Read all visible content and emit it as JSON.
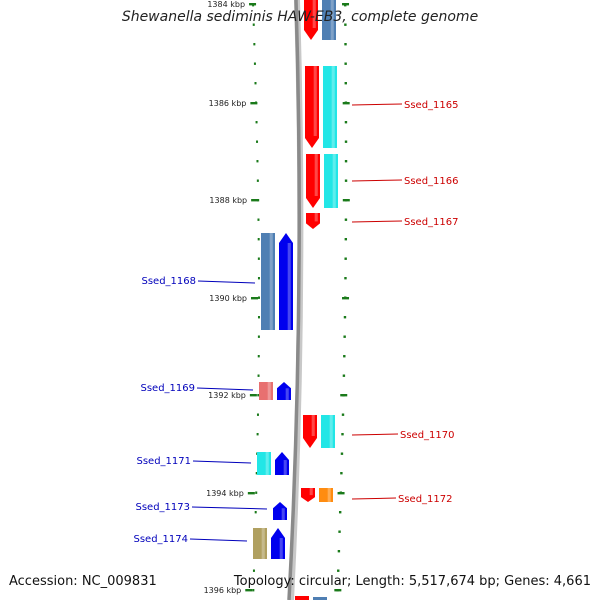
{
  "title": "Shewanella sediminis HAW-EB3, complete genome",
  "accession_text": "Accession: NC_009831",
  "summary_text": "Topology: circular; Length: 5,517,674 bp; Genes: 4,661",
  "ruler": {
    "labels": [
      "1384 kbp",
      "1386 kbp",
      "1388 kbp",
      "1390 kbp",
      "1392 kbp",
      "1394 kbp",
      "1396 kbp"
    ],
    "tick_color": "#1a7a1a"
  },
  "colors": {
    "forward_label": "#cc0000",
    "reverse_label": "#0000bb",
    "red": "#ff0000",
    "cyan": "#22e6e6",
    "blue": "#0000ee",
    "steelblue": "#4f7fb3",
    "pink": "#e87070",
    "orange": "#ff8c10",
    "khaki": "#b0a060",
    "backbone": "#8a8a8a"
  },
  "genes_forward": [
    {
      "label": "",
      "color": "red"
    },
    {
      "label": "Ssed_1165",
      "color": "red"
    },
    {
      "label": "Ssed_1166",
      "color": "red"
    },
    {
      "label": "Ssed_1167",
      "color": "red"
    },
    {
      "label": "Ssed_1170",
      "color": "red"
    },
    {
      "label": "Ssed_1172",
      "color": "red"
    }
  ],
  "genes_reverse": [
    {
      "label": "Ssed_1168",
      "color": "blue"
    },
    {
      "label": "Ssed_1169",
      "color": "blue"
    },
    {
      "label": "Ssed_1171",
      "color": "blue"
    },
    {
      "label": "Ssed_1173",
      "color": "blue"
    },
    {
      "label": "Ssed_1174",
      "color": "blue"
    }
  ]
}
